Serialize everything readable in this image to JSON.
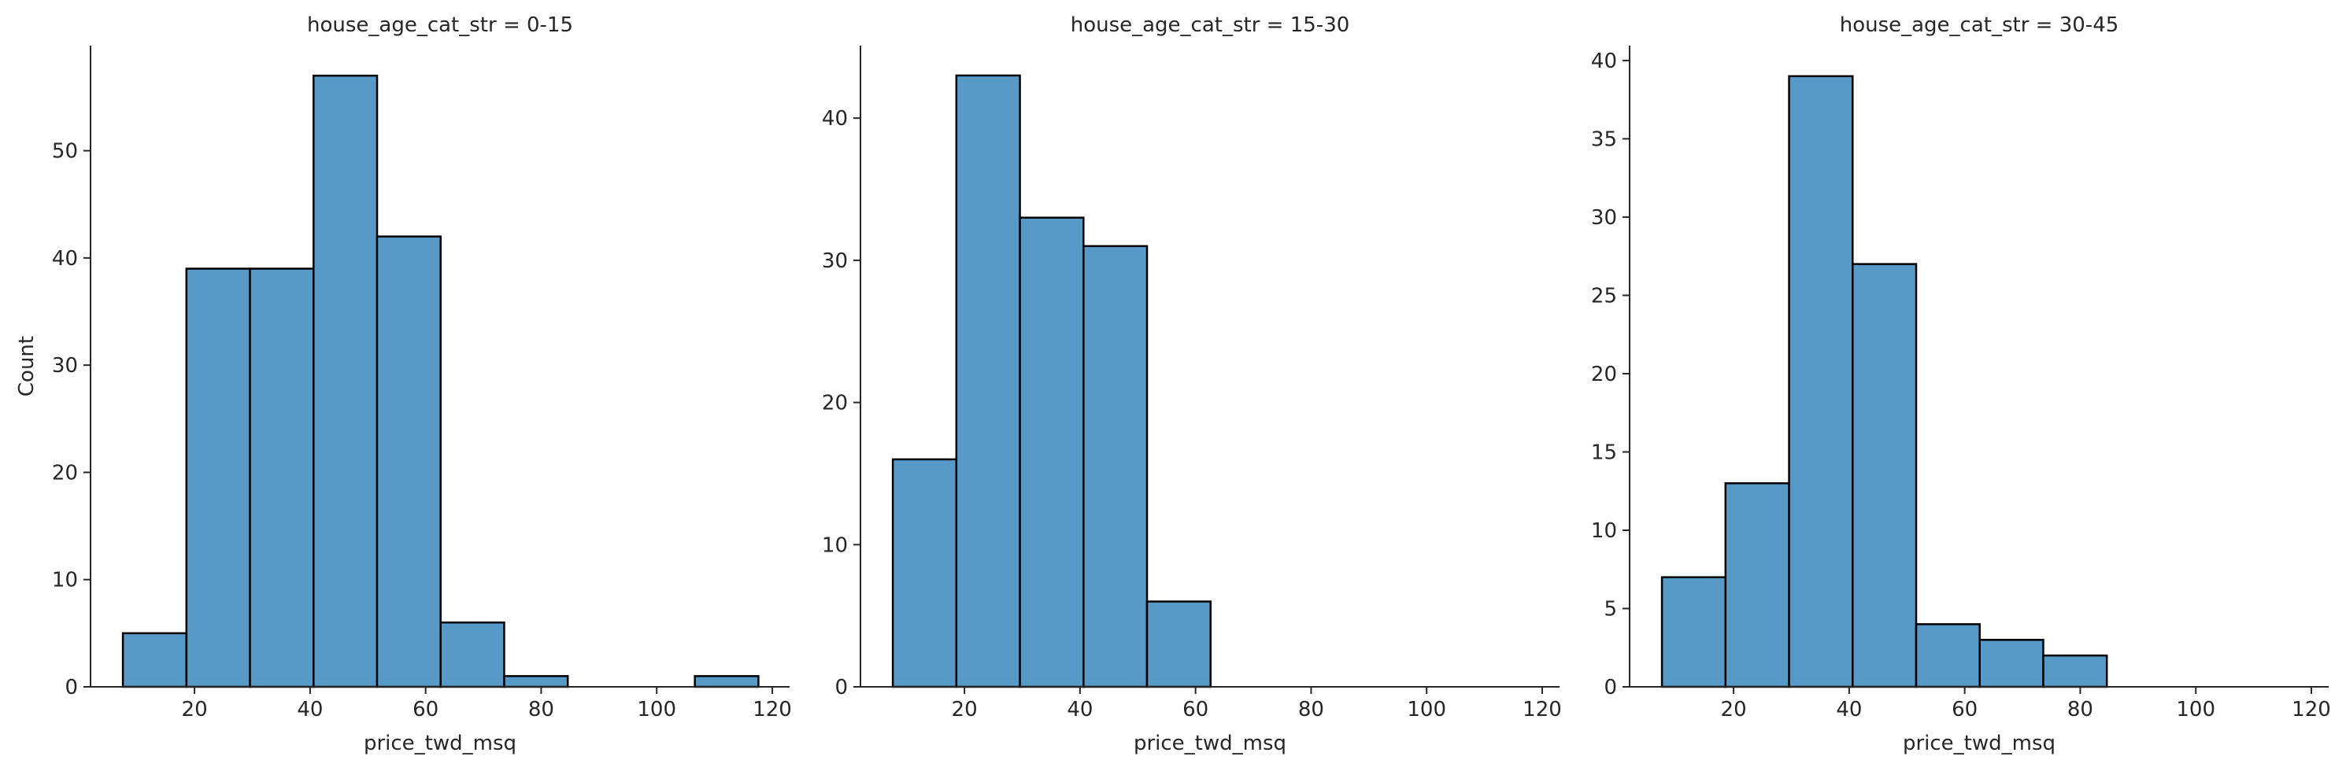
{
  "chart_data": [
    {
      "type": "bar",
      "title": "house_age_cat_str = 0-15",
      "xlabel": "price_twd_msq",
      "ylabel": "Count",
      "bin_edges": [
        7.6,
        18.6,
        29.6,
        40.6,
        51.6,
        62.6,
        73.6,
        84.6,
        95.6,
        106.6,
        117.6
      ],
      "values": [
        5,
        39,
        39,
        57,
        42,
        6,
        1,
        0,
        0,
        1
      ],
      "xlim": [
        2,
        123
      ],
      "ylim": [
        0,
        59.8
      ],
      "xticks": [
        20,
        40,
        60,
        80,
        100,
        120
      ],
      "yticks": [
        0,
        10,
        20,
        30,
        40,
        50
      ],
      "color": "#5799c7",
      "edgecolor": "#000000",
      "grid": false
    },
    {
      "type": "bar",
      "title": "house_age_cat_str = 15-30",
      "xlabel": "price_twd_msq",
      "ylabel": "",
      "bin_edges": [
        7.6,
        18.6,
        29.6,
        40.6,
        51.6,
        62.6
      ],
      "values": [
        16,
        43,
        33,
        31,
        6
      ],
      "xlim": [
        2,
        123
      ],
      "ylim": [
        0,
        45.1
      ],
      "xticks": [
        20,
        40,
        60,
        80,
        100,
        120
      ],
      "yticks": [
        0,
        10,
        20,
        30,
        40
      ],
      "color": "#5799c7",
      "edgecolor": "#000000",
      "grid": false
    },
    {
      "type": "bar",
      "title": "house_age_cat_str = 30-45",
      "xlabel": "price_twd_msq",
      "ylabel": "",
      "bin_edges": [
        7.6,
        18.6,
        29.6,
        40.6,
        51.6,
        62.6,
        73.6,
        84.6
      ],
      "values": [
        7,
        13,
        39,
        27,
        4,
        3,
        2
      ],
      "xlim": [
        2,
        123
      ],
      "ylim": [
        0,
        40.95
      ],
      "xticks": [
        20,
        40,
        60,
        80,
        100,
        120
      ],
      "yticks": [
        0,
        5,
        10,
        15,
        20,
        25,
        30,
        35,
        40
      ],
      "color": "#5799c7",
      "edgecolor": "#000000",
      "grid": false
    }
  ]
}
